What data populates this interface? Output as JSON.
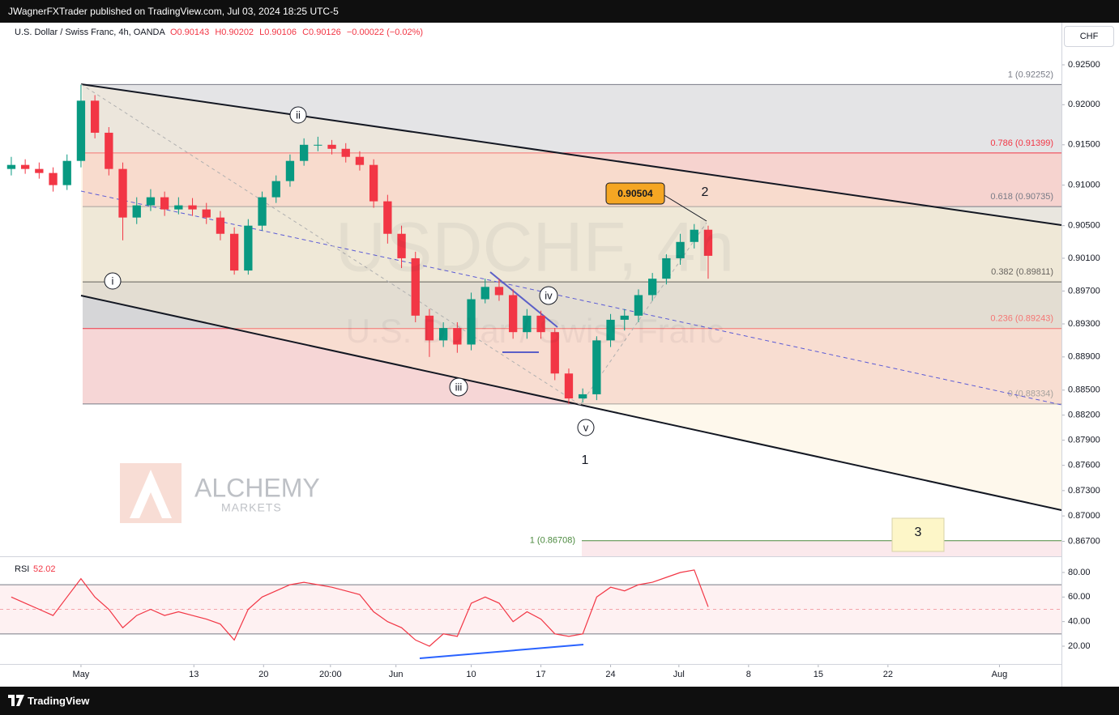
{
  "header": {
    "publisher": "JWagnerFXTrader published on TradingView.com, Jul 03, 2024 18:25 UTC-5"
  },
  "footer": {
    "brand": "TradingView"
  },
  "chart_data": [
    {
      "type": "candlestick",
      "title": "U.S. Dollar / Swiss Franc, 4h, OANDA",
      "ohlc_legend": [
        "O0.90143",
        "H0.90202",
        "L0.90106",
        "C0.90126",
        "−0.00022 (−0.02%)"
      ],
      "currency": "CHF",
      "watermark": [
        "USDCHF, 4h",
        "U.S. Dollar / Swiss Franc"
      ],
      "logo": [
        "ALCHEMY",
        "MARKETS"
      ],
      "x": [
        -5,
        -4,
        -3,
        -2,
        -1,
        0,
        1,
        2,
        3,
        4,
        5,
        6,
        7,
        8,
        9,
        10,
        11,
        12,
        13,
        14,
        15,
        16,
        17,
        18,
        19,
        20,
        21,
        22,
        23,
        24,
        25,
        26,
        27,
        28,
        29,
        30,
        31,
        32,
        33,
        34,
        35,
        36,
        37,
        38,
        39,
        40,
        41,
        42,
        43,
        44,
        45
      ],
      "open": [
        0.912,
        0.9125,
        0.912,
        0.9115,
        0.91,
        0.913,
        0.9205,
        0.9165,
        0.912,
        0.906,
        0.9075,
        0.9085,
        0.907,
        0.9075,
        0.907,
        0.906,
        0.904,
        0.8995,
        0.905,
        0.9085,
        0.9105,
        0.913,
        0.915,
        0.915,
        0.9145,
        0.9135,
        0.9125,
        0.908,
        0.904,
        0.901,
        0.894,
        0.891,
        0.8925,
        0.8905,
        0.896,
        0.8975,
        0.8965,
        0.892,
        0.894,
        0.892,
        0.887,
        0.884,
        0.8845,
        0.891,
        0.8935,
        0.894,
        0.8965,
        0.8985,
        0.901,
        0.903,
        0.9045
      ],
      "high": [
        0.9135,
        0.9132,
        0.9128,
        0.9122,
        0.9138,
        0.9225,
        0.9212,
        0.9172,
        0.9128,
        0.9085,
        0.9095,
        0.9092,
        0.9085,
        0.9084,
        0.9078,
        0.9068,
        0.9048,
        0.9058,
        0.9092,
        0.9112,
        0.9138,
        0.9158,
        0.916,
        0.9156,
        0.9152,
        0.9142,
        0.9132,
        0.9088,
        0.905,
        0.9018,
        0.8948,
        0.8932,
        0.8932,
        0.8968,
        0.8985,
        0.8985,
        0.8972,
        0.8948,
        0.8946,
        0.8925,
        0.8876,
        0.8852,
        0.8915,
        0.8942,
        0.8948,
        0.8972,
        0.8992,
        0.9015,
        0.904,
        0.9052,
        0.905
      ],
      "low": [
        0.9112,
        0.9114,
        0.9108,
        0.9092,
        0.9094,
        0.9122,
        0.9158,
        0.9112,
        0.9032,
        0.9052,
        0.9068,
        0.9062,
        0.9064,
        0.9062,
        0.9052,
        0.9032,
        0.899,
        0.899,
        0.9044,
        0.9078,
        0.9098,
        0.9124,
        0.9142,
        0.9138,
        0.9128,
        0.9118,
        0.9072,
        0.9028,
        0.8998,
        0.8932,
        0.889,
        0.8902,
        0.8895,
        0.8898,
        0.8955,
        0.8958,
        0.8912,
        0.8912,
        0.8912,
        0.8862,
        0.8833,
        0.8835,
        0.8838,
        0.8902,
        0.8922,
        0.8932,
        0.8958,
        0.8978,
        0.9002,
        0.9022,
        0.8985
      ],
      "close": [
        0.9125,
        0.912,
        0.9115,
        0.91,
        0.913,
        0.9205,
        0.9165,
        0.912,
        0.906,
        0.9075,
        0.9085,
        0.907,
        0.9075,
        0.907,
        0.906,
        0.904,
        0.8995,
        0.905,
        0.9085,
        0.9105,
        0.913,
        0.915,
        0.915,
        0.9145,
        0.9135,
        0.9125,
        0.908,
        0.904,
        0.901,
        0.894,
        0.891,
        0.8925,
        0.8905,
        0.896,
        0.8975,
        0.8965,
        0.892,
        0.894,
        0.892,
        0.887,
        0.884,
        0.8845,
        0.891,
        0.8935,
        0.894,
        0.8965,
        0.8985,
        0.901,
        0.903,
        0.9045,
        0.9013
      ],
      "up_color": "#089981",
      "down_color": "#f23645",
      "xlim": [
        -5.81,
        70.35
      ],
      "xticks": [
        {
          "value": 0,
          "label": "May"
        },
        {
          "value": 8.1,
          "label": "13"
        },
        {
          "value": 13.1,
          "label": "20"
        },
        {
          "value": 17.9,
          "label": "20:00"
        },
        {
          "value": 22.6,
          "label": "Jun"
        },
        {
          "value": 28.0,
          "label": "10"
        },
        {
          "value": 33.0,
          "label": "17"
        },
        {
          "value": 38.0,
          "label": "24"
        },
        {
          "value": 42.9,
          "label": "Jul"
        },
        {
          "value": 47.9,
          "label": "8"
        },
        {
          "value": 52.9,
          "label": "15"
        },
        {
          "value": 57.9,
          "label": "22"
        },
        {
          "value": 65.9,
          "label": "Aug"
        }
      ],
      "ylim": [
        0.86524,
        0.93031
      ],
      "log_scale": true,
      "yticks": [
        {
          "value": 0.925,
          "label": "0.92500"
        },
        {
          "value": 0.92,
          "label": "0.92000"
        },
        {
          "value": 0.915,
          "label": "0.91500"
        },
        {
          "value": 0.91,
          "label": "0.91000"
        },
        {
          "value": 0.905,
          "label": "0.90500"
        },
        {
          "value": 0.901,
          "label": "0.90100"
        },
        {
          "value": 0.897,
          "label": "0.89700"
        },
        {
          "value": 0.893,
          "label": "0.89300"
        },
        {
          "value": 0.889,
          "label": "0.88900"
        },
        {
          "value": 0.885,
          "label": "0.88500"
        },
        {
          "value": 0.882,
          "label": "0.88200"
        },
        {
          "value": 0.879,
          "label": "0.87900"
        },
        {
          "value": 0.876,
          "label": "0.87600"
        },
        {
          "value": 0.873,
          "label": "0.87300"
        },
        {
          "value": 0.87,
          "label": "0.87000"
        },
        {
          "value": 0.867,
          "label": "0.86700"
        }
      ],
      "fib_levels": [
        {
          "label": "1 (0.92252)",
          "value": 0.92252,
          "color": "#787b86",
          "zone": "#e4e4e6"
        },
        {
          "label": "0.786 (0.91399)",
          "value": 0.91399,
          "color": "#f23645",
          "zone": "#f6d3cf"
        },
        {
          "label": "0.618 (0.90735)",
          "value": 0.90735,
          "color": "#787b86",
          "zone": "#e9e6df"
        },
        {
          "label": "0.382 (0.89811)",
          "value": 0.89811,
          "color": "#131722",
          "zone": "#d6d6d8"
        },
        {
          "label": "0.236 (0.89243)",
          "value": 0.89243,
          "color": "#f23645",
          "zone": "#f6d6d6"
        },
        {
          "label": "0 (0.88334)",
          "value": 0.88334,
          "color": "#787b86"
        }
      ],
      "extension": {
        "label": "1 (0.86708)",
        "value": 0.86708,
        "color": "#4c8a3f"
      },
      "price_box": 0.90504,
      "waves": [
        "i",
        "ii",
        "iii",
        "iv",
        "v",
        "1",
        "2",
        "3"
      ]
    },
    {
      "type": "line",
      "title": "RSI",
      "current": 52.02,
      "color": "#f23645",
      "x": [
        -5,
        -4,
        -3,
        -2,
        -1,
        0,
        1,
        2,
        3,
        4,
        5,
        6,
        7,
        8,
        9,
        10,
        11,
        12,
        13,
        14,
        15,
        16,
        17,
        18,
        19,
        20,
        21,
        22,
        23,
        24,
        25,
        26,
        27,
        28,
        29,
        30,
        31,
        32,
        33,
        34,
        35,
        36,
        37,
        38,
        39,
        40,
        41,
        42,
        43,
        44,
        45
      ],
      "values": [
        60,
        55,
        50,
        45,
        60,
        75,
        60,
        50,
        35,
        45,
        50,
        45,
        48,
        45,
        42,
        38,
        25,
        50,
        60,
        65,
        70,
        72,
        70,
        68,
        65,
        62,
        48,
        40,
        35,
        25,
        20,
        30,
        28,
        55,
        60,
        55,
        40,
        48,
        42,
        30,
        28,
        30,
        60,
        68,
        65,
        70,
        72,
        76,
        80,
        82,
        52.02
      ],
      "ylim": [
        5.5,
        92.5
      ],
      "yticks": [
        {
          "value": 80,
          "label": "80.00"
        },
        {
          "value": 60,
          "label": "60.00"
        },
        {
          "value": 40,
          "label": "40.00"
        },
        {
          "value": 20,
          "label": "20.00"
        }
      ],
      "bands": [
        70,
        30
      ],
      "midline": 50
    }
  ]
}
